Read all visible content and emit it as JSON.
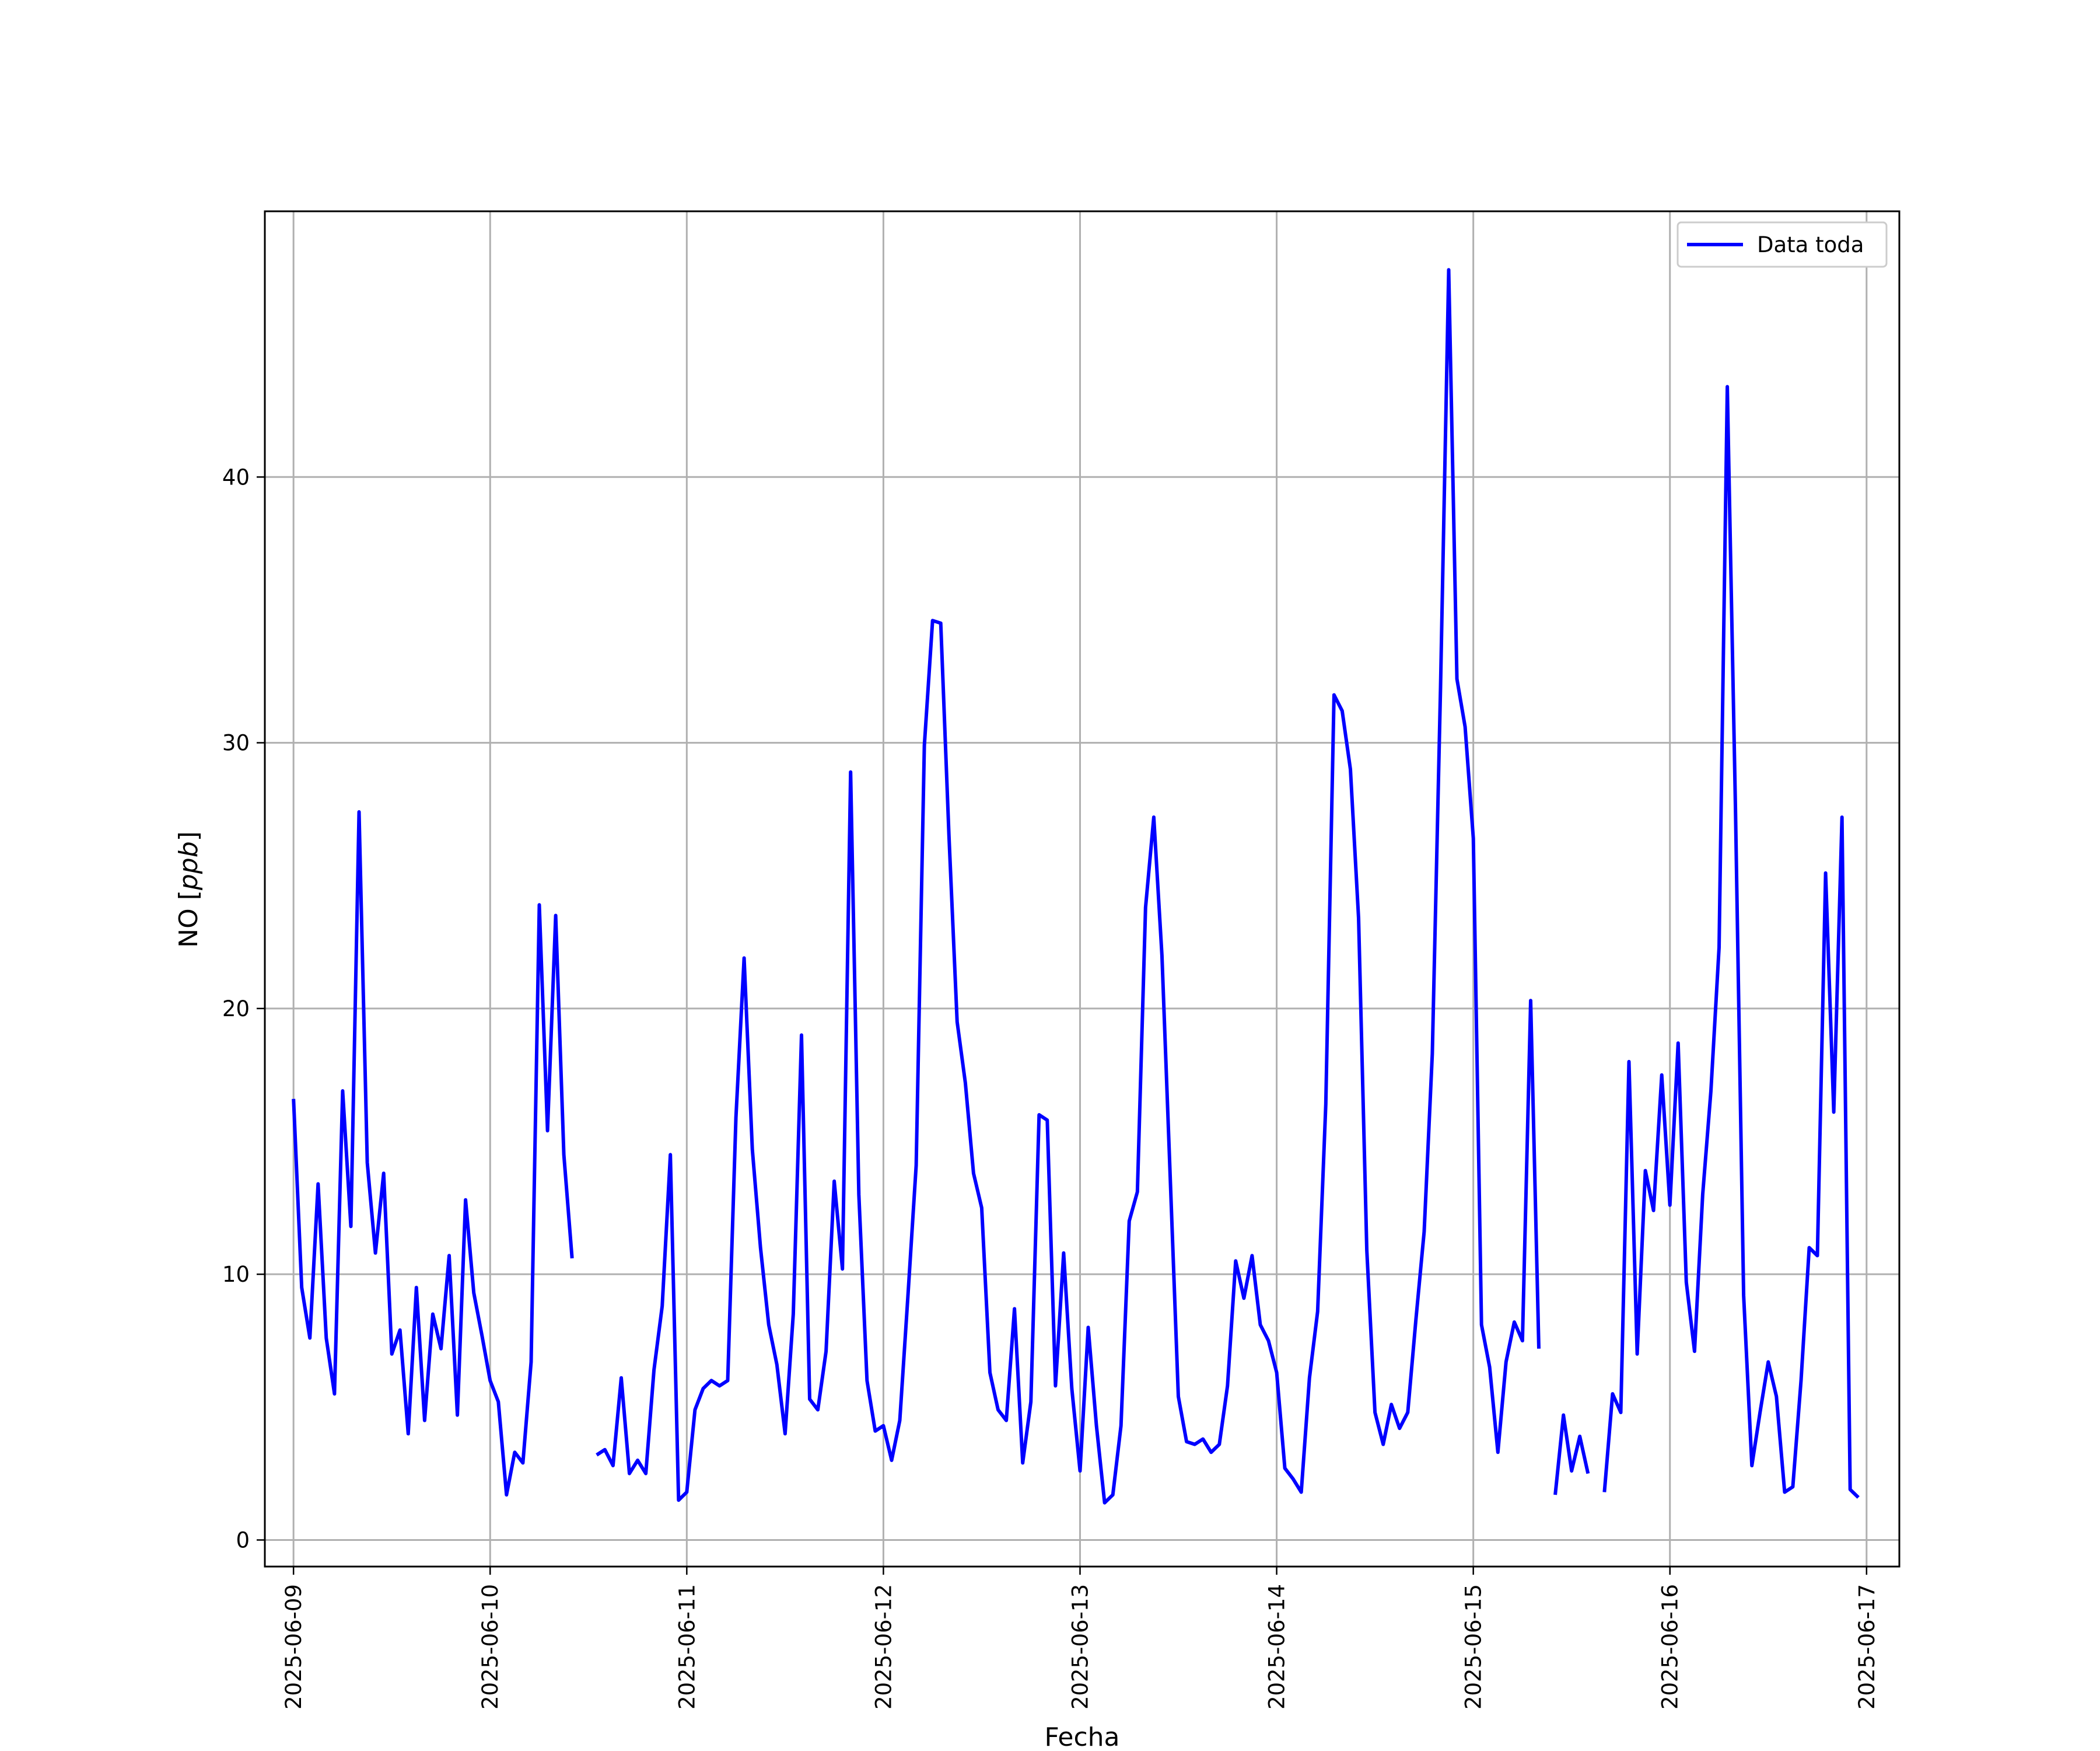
{
  "chart_data": {
    "type": "line",
    "xlabel": "Fecha",
    "ylabel_main": "NO [",
    "ylabel_italic": "ppb",
    "ylabel_end": "]",
    "xlim": [
      "2025-06-08 20:30",
      "2025-06-17 04:00"
    ],
    "ylim": [
      -1,
      50
    ],
    "grid": true,
    "legend_placement": "top-right",
    "x_ticks": [
      "2025-06-09",
      "2025-06-10",
      "2025-06-11",
      "2025-06-12",
      "2025-06-13",
      "2025-06-14",
      "2025-06-15",
      "2025-06-16",
      "2025-06-17"
    ],
    "y_ticks": [
      "0",
      "10",
      "20",
      "30",
      "40"
    ],
    "series": [
      {
        "name": "Data toda",
        "color": "#0000ff",
        "x_start": "2025-06-09 00:00",
        "x_step_hours": 1,
        "values": [
          16.6,
          9.5,
          7.6,
          13.4,
          7.6,
          5.5,
          16.9,
          11.8,
          27.4,
          14.2,
          10.8,
          13.8,
          7.0,
          7.9,
          4.0,
          9.5,
          4.5,
          8.5,
          7.2,
          10.7,
          4.7,
          12.8,
          9.3,
          7.7,
          6.0,
          5.2,
          1.7,
          3.3,
          2.9,
          6.7,
          23.9,
          15.4,
          23.5,
          14.5,
          10.6,
          null,
          null,
          3.2,
          3.4,
          2.8,
          6.1,
          2.5,
          3.0,
          2.5,
          6.4,
          8.8,
          14.5,
          1.5,
          1.8,
          4.9,
          5.7,
          6.0,
          5.8,
          6.0,
          15.9,
          21.9,
          14.7,
          11.0,
          8.1,
          6.6,
          4.0,
          8.5,
          19.0,
          5.3,
          4.9,
          7.1,
          13.5,
          10.2,
          28.9,
          13.0,
          6.0,
          4.1,
          4.3,
          3.0,
          4.5,
          9.2,
          14.1,
          29.9,
          34.6,
          34.5,
          26.5,
          19.5,
          17.2,
          13.8,
          12.5,
          6.3,
          4.9,
          4.5,
          8.7,
          2.9,
          5.2,
          16.0,
          15.8,
          5.8,
          10.8,
          5.7,
          2.6,
          8.0,
          4.3,
          1.4,
          1.7,
          4.3,
          12.0,
          13.1,
          23.8,
          27.2,
          22.0,
          13.7,
          5.4,
          3.7,
          3.6,
          3.8,
          3.3,
          3.6,
          5.8,
          10.5,
          9.1,
          10.7,
          8.1,
          7.5,
          6.3,
          2.7,
          2.3,
          1.8,
          6.1,
          8.6,
          16.4,
          31.8,
          31.2,
          29.0,
          23.4,
          10.9,
          4.8,
          3.6,
          5.1,
          4.2,
          4.8,
          8.3,
          11.6,
          18.3,
          32.1,
          47.8,
          32.4,
          30.6,
          26.4,
          8.1,
          6.5,
          3.3,
          6.7,
          8.2,
          7.5,
          20.3,
          7.2,
          null,
          1.7,
          4.7,
          2.6,
          3.9,
          2.5,
          null,
          1.8,
          5.5,
          4.8,
          18.0,
          7.0,
          13.9,
          12.4,
          17.5,
          12.6,
          18.7,
          9.7,
          7.1,
          13.0,
          16.9,
          22.3,
          43.4,
          27.5,
          9.2,
          2.8,
          4.8,
          6.7,
          5.4,
          1.8,
          2.0,
          6.0,
          11.0,
          10.7,
          25.1,
          16.1,
          27.2,
          1.9,
          1.6
        ]
      }
    ]
  }
}
